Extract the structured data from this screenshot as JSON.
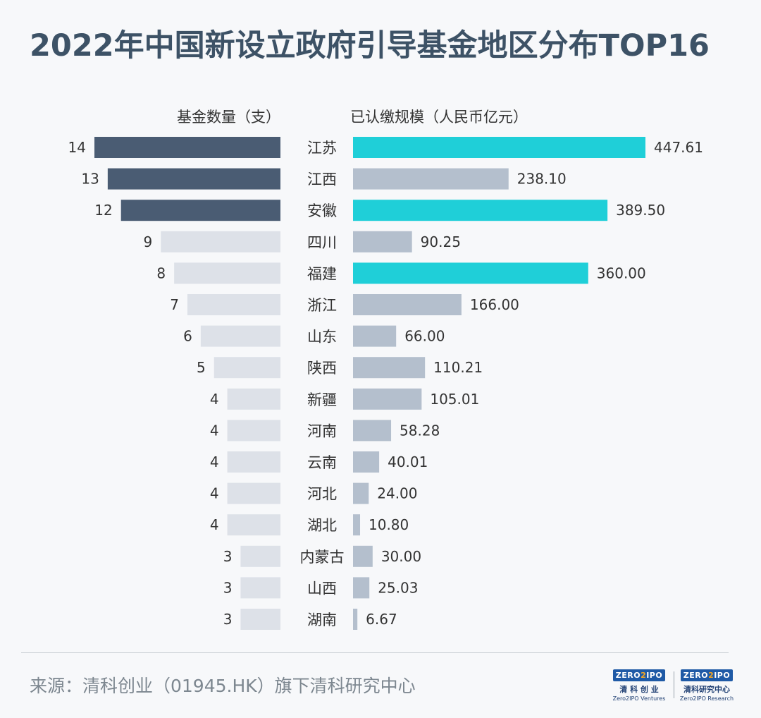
{
  "title": "2022年中国新设立政府引导基金地区分布TOP16",
  "source": "来源：清科创业（01945.HK）旗下清科研究中心",
  "logos": [
    {
      "mark_a": "ZERO",
      "mark_b": "2",
      "mark_c": "IPO",
      "cn": "清 科 创 业",
      "en": "Zero2IPO Ventures"
    },
    {
      "mark_a": "ZERO",
      "mark_b": "2",
      "mark_c": "IPO",
      "cn": "清科研究中心",
      "en": "Zero2IPO Research"
    }
  ],
  "colors": {
    "left_highlight": "#4a5c73",
    "left_normal": "#dde1e8",
    "right_highlight": "#1fcfd8",
    "right_normal": "#b4bfcd",
    "text": "#333333"
  },
  "chart_data": {
    "type": "bar",
    "layout": "butterfly",
    "categories": [
      "江苏",
      "江西",
      "安徽",
      "四川",
      "福建",
      "浙江",
      "山东",
      "陕西",
      "新疆",
      "河南",
      "云南",
      "河北",
      "湖北",
      "内蒙古",
      "山西",
      "湖南"
    ],
    "series": [
      {
        "name": "基金数量（支）",
        "values": [
          14,
          13,
          12,
          9,
          8,
          7,
          6,
          5,
          4,
          4,
          4,
          4,
          4,
          3,
          3,
          3
        ],
        "highlight": [
          true,
          true,
          true,
          false,
          false,
          false,
          false,
          false,
          false,
          false,
          false,
          false,
          false,
          false,
          false,
          false
        ]
      },
      {
        "name": "已认缴规模（人民币亿元）",
        "values": [
          "447.61",
          "238.10",
          "389.50",
          "90.25",
          "360.00",
          "166.00",
          "66.00",
          "110.21",
          "105.01",
          "58.28",
          "40.01",
          "24.00",
          "10.80",
          "30.00",
          "25.03",
          "6.67"
        ],
        "highlight": [
          true,
          false,
          true,
          false,
          true,
          false,
          false,
          false,
          false,
          false,
          false,
          false,
          false,
          false,
          false,
          false
        ]
      }
    ]
  }
}
